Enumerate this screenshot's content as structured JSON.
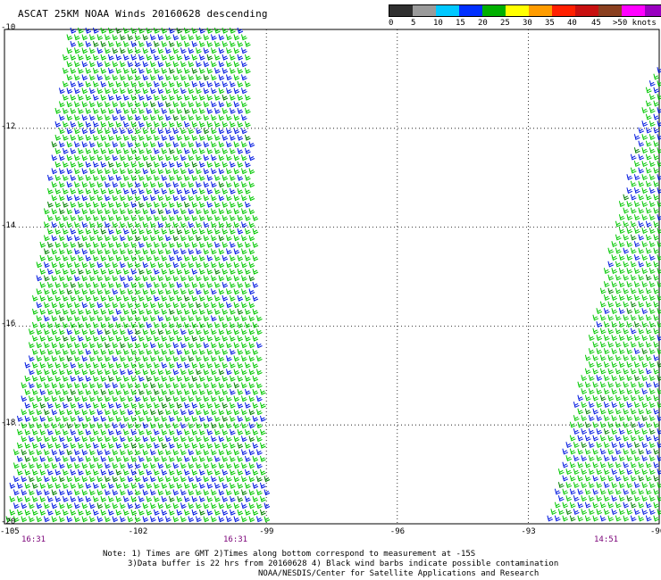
{
  "header": {
    "title": "ASCAT 25KM NOAA Winds 20160628 descending"
  },
  "speed_scale": {
    "colors": [
      "#303030",
      "#9a9a9a",
      "#00c8ff",
      "#0030ff",
      "#00b000",
      "#ffff00",
      "#ff9c00",
      "#ff2000",
      "#c81010",
      "#8a4020",
      "#ff00ff",
      "#9900c0",
      "#4a007a"
    ],
    "labels": [
      "0",
      "5",
      "10",
      "15",
      "20",
      "25",
      "30",
      "35",
      "40",
      "45",
      ">50 knots"
    ]
  },
  "axes": {
    "lat_labels": [
      "-10",
      "-12",
      "-14",
      "-16",
      "-18",
      "-20"
    ],
    "lon_labels": [
      "-105",
      "-102",
      "-99",
      "-96",
      "-93",
      "-90"
    ]
  },
  "time_labels": [
    "16:31",
    "16:31",
    "14:51"
  ],
  "notes": {
    "line1": "Note: 1) Times are GMT 2)Times along bottom correspond to measurement at -15S",
    "line2": "3)Data buffer is 22 hrs from 20160628 4) Black wind barbs indicate possible contamination",
    "line3": "NOAA/NESDIS/Center for Satellite Applications and Research"
  },
  "chart_data": {
    "type": "scatter",
    "title": "ASCAT 25KM NOAA Winds 20160628 descending",
    "xlim": [
      -105,
      -90
    ],
    "ylim": [
      -20,
      -10
    ],
    "grid": true,
    "x_ticks": [
      -105,
      -102,
      -99,
      -96,
      -93,
      -90
    ],
    "y_ticks": [
      -10,
      -12,
      -14,
      -16,
      -18,
      -20
    ],
    "series": [
      {
        "swath": "west",
        "time": "16:31",
        "lon_lat_corners": [
          [
            -103.6,
            -10
          ],
          [
            -99.5,
            -10
          ],
          [
            -99.0,
            -20
          ],
          [
            -105,
            -20
          ]
        ],
        "dominant_speed_knots": "15-20",
        "secondary_speed_knots": "10-15"
      },
      {
        "swath": "east",
        "time": "14:51",
        "lon_lat_corners": [
          [
            -90.2,
            -10.8
          ],
          [
            -90,
            -10.8
          ],
          [
            -90,
            -20
          ],
          [
            -92.6,
            -20
          ]
        ],
        "dominant_speed_knots": "15-20",
        "secondary_speed_knots": "10-15"
      }
    ]
  }
}
